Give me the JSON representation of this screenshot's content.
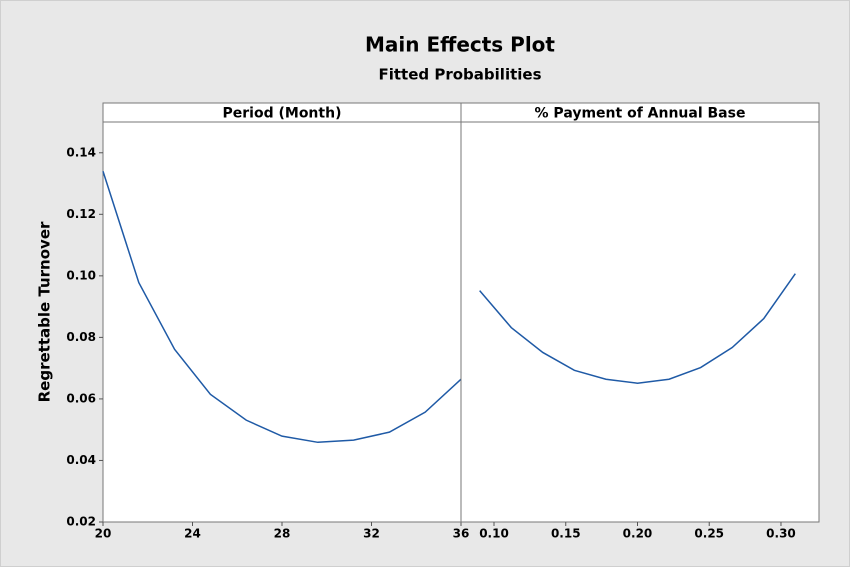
{
  "chart_data": {
    "type": "line",
    "title": "Main Effects Plot",
    "subtitle": "Fitted Probabilities",
    "y_label": "Regrettable Turnover",
    "ylim": [
      0.02,
      0.15
    ],
    "yticks": [
      0.02,
      0.04,
      0.06,
      0.08,
      {
        "value": 0.1,
        "label": "0.10"
      },
      0.12,
      0.14
    ],
    "panels": [
      {
        "title": "Period (Month)",
        "color": "#1f5aa6",
        "x": [
          20,
          21.6,
          23.2,
          24.8,
          26.4,
          28,
          29.6,
          31.2,
          32.8,
          34.4,
          36
        ],
        "values": [
          0.134,
          0.0978,
          0.0761,
          0.0615,
          0.0531,
          0.0479,
          0.0459,
          0.0466,
          0.0492,
          0.0557,
          0.0664
        ],
        "xlim": [
          20,
          36
        ],
        "xticks": [
          20,
          24,
          28,
          32,
          36
        ]
      },
      {
        "title": "% Payment of Annual Base",
        "color": "#1f5aa6",
        "x": [
          0.09,
          0.112,
          0.134,
          0.156,
          0.178,
          0.2,
          0.222,
          0.244,
          0.266,
          0.288,
          0.31
        ],
        "values": [
          0.0952,
          0.0832,
          0.0751,
          0.0693,
          0.0664,
          0.0651,
          0.0664,
          0.0702,
          0.0767,
          0.0861,
          0.1007
        ],
        "xlim": [
          0.077,
          0.3265
        ],
        "xticks": [
          {
            "value": 0.1,
            "label": "0.10"
          },
          0.15,
          {
            "value": 0.2,
            "label": "0.20"
          },
          0.25,
          {
            "value": 0.3,
            "label": "0.30"
          }
        ]
      }
    ]
  }
}
